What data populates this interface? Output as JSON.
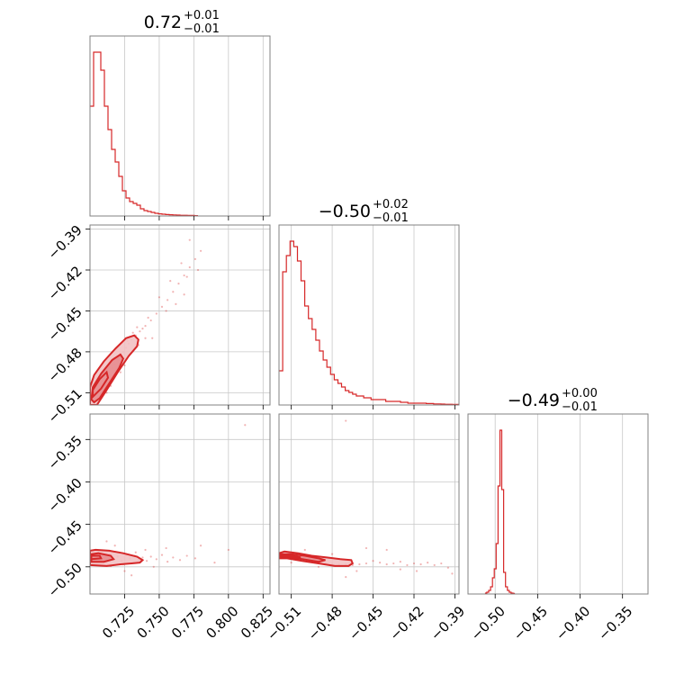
{
  "chart_data": {
    "type": "corner",
    "color": "#d62728",
    "parameters": [
      {
        "axis": "x",
        "range": [
          0.7,
          0.83
        ],
        "ticks": [
          0.725,
          0.75,
          0.775,
          0.8,
          0.825
        ],
        "tick_labels": [
          "0.725",
          "0.750",
          "0.775",
          "0.800",
          "0.825"
        ]
      },
      {
        "axis": "y",
        "range": [
          -0.519,
          -0.387
        ],
        "ticks": [
          -0.51,
          -0.48,
          -0.45,
          -0.42,
          -0.39
        ],
        "tick_labels": [
          "−0.51",
          "−0.48",
          "−0.45",
          "−0.42",
          "−0.39"
        ]
      },
      {
        "axis": "z",
        "range": [
          -0.532,
          -0.32
        ],
        "ticks": [
          -0.5,
          -0.45,
          -0.4,
          -0.35
        ],
        "tick_labels": [
          "−0.50",
          "−0.45",
          "−0.40",
          "−0.35"
        ]
      }
    ],
    "titles": [
      {
        "main": "0.72",
        "upper": "+0.01",
        "lower": "−0.01"
      },
      {
        "main": "−0.50",
        "upper": "+0.02",
        "lower": "−0.01"
      },
      {
        "main": "−0.49",
        "upper": "+0.00",
        "lower": "−0.01"
      }
    ],
    "histograms": [
      {
        "param": 0,
        "start": 0.7,
        "bin_width": 0.0026,
        "counts": [
          0.61,
          0.91,
          0.91,
          0.81,
          0.61,
          0.48,
          0.37,
          0.3,
          0.22,
          0.14,
          0.1,
          0.08,
          0.07,
          0.06,
          0.04,
          0.03,
          0.025,
          0.02,
          0.015,
          0.012,
          0.01,
          0.008,
          0.007,
          0.006,
          0.005,
          0.004,
          0.004,
          0.003,
          0.003,
          0.002
        ]
      },
      {
        "param": 1,
        "start": -0.519,
        "bin_width": 0.0027,
        "counts": [
          0.19,
          0.74,
          0.83,
          0.91,
          0.88,
          0.8,
          0.69,
          0.55,
          0.48,
          0.42,
          0.36,
          0.3,
          0.25,
          0.21,
          0.17,
          0.14,
          0.12,
          0.1,
          0.08,
          0.07,
          0.06,
          0.05,
          0.05,
          0.04,
          0.04,
          0.03,
          0.03,
          0.03,
          0.03,
          0.02,
          0.02,
          0.02,
          0.02,
          0.015,
          0.015,
          0.01,
          0.01,
          0.01,
          0.01,
          0.01,
          0.008,
          0.008,
          0.006,
          0.006,
          0.005,
          0.004,
          0.004,
          0.003,
          0.003
        ]
      },
      {
        "param": 2,
        "start": -0.512,
        "bin_width": 0.0022,
        "counts": [
          0.005,
          0.01,
          0.02,
          0.04,
          0.09,
          0.14,
          0.28,
          0.6,
          0.91,
          0.58,
          0.12,
          0.04,
          0.02,
          0.01,
          0.005,
          0.003
        ]
      }
    ],
    "scatter": [
      {
        "x_param": 0,
        "y_param": 1,
        "points": [
          [
            0.704,
            -0.512
          ],
          [
            0.706,
            -0.508
          ],
          [
            0.708,
            -0.505
          ],
          [
            0.71,
            -0.501
          ],
          [
            0.712,
            -0.498
          ],
          [
            0.714,
            -0.495
          ],
          [
            0.716,
            -0.492
          ],
          [
            0.718,
            -0.489
          ],
          [
            0.72,
            -0.486
          ],
          [
            0.722,
            -0.483
          ],
          [
            0.724,
            -0.48
          ],
          [
            0.726,
            -0.477
          ],
          [
            0.728,
            -0.474
          ],
          [
            0.73,
            -0.471
          ],
          [
            0.733,
            -0.468
          ],
          [
            0.736,
            -0.465
          ],
          [
            0.74,
            -0.461
          ],
          [
            0.744,
            -0.457
          ],
          [
            0.748,
            -0.452
          ],
          [
            0.752,
            -0.447
          ],
          [
            0.756,
            -0.442
          ],
          [
            0.76,
            -0.436
          ],
          [
            0.764,
            -0.43
          ],
          [
            0.768,
            -0.424
          ],
          [
            0.772,
            -0.418
          ],
          [
            0.776,
            -0.412
          ],
          [
            0.78,
            -0.406
          ],
          [
            0.742,
            -0.455
          ],
          [
            0.738,
            -0.463
          ],
          [
            0.727,
            -0.472
          ],
          [
            0.731,
            -0.466
          ],
          [
            0.734,
            -0.462
          ],
          [
            0.75,
            -0.44
          ],
          [
            0.758,
            -0.428
          ],
          [
            0.766,
            -0.415
          ],
          [
            0.772,
            -0.398
          ],
          [
            0.77,
            -0.425
          ],
          [
            0.778,
            -0.42
          ],
          [
            0.745,
            -0.47
          ],
          [
            0.715,
            -0.505
          ],
          [
            0.712,
            -0.51
          ],
          [
            0.722,
            -0.495
          ],
          [
            0.725,
            -0.49
          ],
          [
            0.735,
            -0.475
          ],
          [
            0.74,
            -0.47
          ],
          [
            0.755,
            -0.45
          ],
          [
            0.762,
            -0.445
          ],
          [
            0.768,
            -0.438
          ]
        ]
      },
      {
        "x_param": 0,
        "y_param": 2,
        "points": [
          [
            0.702,
            -0.492
          ],
          [
            0.705,
            -0.487
          ],
          [
            0.708,
            -0.494
          ],
          [
            0.711,
            -0.489
          ],
          [
            0.714,
            -0.485
          ],
          [
            0.717,
            -0.491
          ],
          [
            0.72,
            -0.488
          ],
          [
            0.723,
            -0.493
          ],
          [
            0.726,
            -0.486
          ],
          [
            0.729,
            -0.49
          ],
          [
            0.732,
            -0.487
          ],
          [
            0.735,
            -0.492
          ],
          [
            0.738,
            -0.489
          ],
          [
            0.741,
            -0.493
          ],
          [
            0.744,
            -0.488
          ],
          [
            0.748,
            -0.491
          ],
          [
            0.752,
            -0.486
          ],
          [
            0.756,
            -0.494
          ],
          [
            0.76,
            -0.489
          ],
          [
            0.765,
            -0.492
          ],
          [
            0.77,
            -0.487
          ],
          [
            0.776,
            -0.49
          ],
          [
            0.712,
            -0.47
          ],
          [
            0.718,
            -0.475
          ],
          [
            0.725,
            -0.505
          ],
          [
            0.73,
            -0.51
          ],
          [
            0.74,
            -0.48
          ],
          [
            0.746,
            -0.5
          ],
          [
            0.755,
            -0.478
          ],
          [
            0.78,
            -0.475
          ],
          [
            0.79,
            -0.495
          ],
          [
            0.8,
            -0.48
          ],
          [
            0.812,
            -0.333
          ],
          [
            0.724,
            -0.497
          ],
          [
            0.733,
            -0.483
          ],
          [
            0.715,
            -0.499
          ]
        ]
      },
      {
        "x_param": 1,
        "y_param": 2,
        "points": [
          [
            -0.515,
            -0.485
          ],
          [
            -0.51,
            -0.488
          ],
          [
            -0.505,
            -0.49
          ],
          [
            -0.5,
            -0.492
          ],
          [
            -0.495,
            -0.493
          ],
          [
            -0.49,
            -0.494
          ],
          [
            -0.485,
            -0.496
          ],
          [
            -0.48,
            -0.496
          ],
          [
            -0.475,
            -0.497
          ],
          [
            -0.47,
            -0.497
          ],
          [
            -0.465,
            -0.498
          ],
          [
            -0.46,
            -0.497
          ],
          [
            -0.455,
            -0.496
          ],
          [
            -0.45,
            -0.493
          ],
          [
            -0.445,
            -0.495
          ],
          [
            -0.44,
            -0.497
          ],
          [
            -0.435,
            -0.496
          ],
          [
            -0.43,
            -0.494
          ],
          [
            -0.425,
            -0.498
          ],
          [
            -0.42,
            -0.496
          ],
          [
            -0.415,
            -0.497
          ],
          [
            -0.41,
            -0.495
          ],
          [
            -0.405,
            -0.498
          ],
          [
            -0.4,
            -0.496
          ],
          [
            -0.395,
            -0.501
          ],
          [
            -0.392,
            -0.508
          ],
          [
            -0.47,
            -0.328
          ],
          [
            -0.44,
            -0.48
          ],
          [
            -0.455,
            -0.478
          ],
          [
            -0.48,
            -0.485
          ],
          [
            -0.49,
            -0.5
          ],
          [
            -0.5,
            -0.48
          ],
          [
            -0.51,
            -0.495
          ],
          [
            -0.462,
            -0.505
          ],
          [
            -0.43,
            -0.503
          ],
          [
            -0.418,
            -0.505
          ],
          [
            -0.47,
            -0.512
          ]
        ]
      }
    ],
    "contours": [
      {
        "x_param": 0,
        "y_param": 1,
        "outer": [
          [
            0.701,
            -0.519
          ],
          [
            0.705,
            -0.519
          ],
          [
            0.712,
            -0.508
          ],
          [
            0.72,
            -0.495
          ],
          [
            0.728,
            -0.483
          ],
          [
            0.734,
            -0.476
          ],
          [
            0.735,
            -0.471
          ],
          [
            0.732,
            -0.468
          ],
          [
            0.726,
            -0.47
          ],
          [
            0.718,
            -0.478
          ],
          [
            0.71,
            -0.487
          ],
          [
            0.703,
            -0.497
          ],
          [
            0.7,
            -0.506
          ],
          [
            0.7,
            -0.519
          ]
        ],
        "inner": [
          [
            0.703,
            -0.517
          ],
          [
            0.707,
            -0.514
          ],
          [
            0.714,
            -0.503
          ],
          [
            0.721,
            -0.492
          ],
          [
            0.724,
            -0.485
          ],
          [
            0.722,
            -0.482
          ],
          [
            0.716,
            -0.486
          ],
          [
            0.708,
            -0.496
          ],
          [
            0.702,
            -0.506
          ],
          [
            0.701,
            -0.515
          ]
        ],
        "core": [
          [
            0.702,
            -0.513
          ],
          [
            0.708,
            -0.507
          ],
          [
            0.713,
            -0.499
          ],
          [
            0.712,
            -0.495
          ],
          [
            0.707,
            -0.5
          ],
          [
            0.702,
            -0.508
          ]
        ]
      },
      {
        "x_param": 0,
        "y_param": 2,
        "outer": [
          [
            0.7,
            -0.498
          ],
          [
            0.712,
            -0.499
          ],
          [
            0.722,
            -0.497
          ],
          [
            0.73,
            -0.496
          ],
          [
            0.736,
            -0.495
          ],
          [
            0.738,
            -0.492
          ],
          [
            0.734,
            -0.488
          ],
          [
            0.724,
            -0.484
          ],
          [
            0.714,
            -0.481
          ],
          [
            0.704,
            -0.48
          ],
          [
            0.7,
            -0.481
          ]
        ],
        "inner": [
          [
            0.701,
            -0.494
          ],
          [
            0.71,
            -0.494
          ],
          [
            0.717,
            -0.491
          ],
          [
            0.715,
            -0.487
          ],
          [
            0.706,
            -0.484
          ],
          [
            0.701,
            -0.485
          ]
        ],
        "core": [
          [
            0.701,
            -0.491
          ],
          [
            0.708,
            -0.49
          ],
          [
            0.707,
            -0.487
          ],
          [
            0.701,
            -0.487
          ]
        ]
      },
      {
        "x_param": 1,
        "y_param": 2,
        "outer": [
          [
            -0.519,
            -0.484
          ],
          [
            -0.515,
            -0.482
          ],
          [
            -0.505,
            -0.484
          ],
          [
            -0.495,
            -0.487
          ],
          [
            -0.484,
            -0.489
          ],
          [
            -0.474,
            -0.491
          ],
          [
            -0.466,
            -0.492
          ],
          [
            -0.465,
            -0.496
          ],
          [
            -0.468,
            -0.499
          ],
          [
            -0.478,
            -0.499
          ],
          [
            -0.49,
            -0.496
          ],
          [
            -0.502,
            -0.493
          ],
          [
            -0.513,
            -0.49
          ],
          [
            -0.519,
            -0.49
          ]
        ],
        "inner": [
          [
            -0.518,
            -0.485
          ],
          [
            -0.51,
            -0.485
          ],
          [
            -0.5,
            -0.487
          ],
          [
            -0.49,
            -0.49
          ],
          [
            -0.485,
            -0.492
          ],
          [
            -0.49,
            -0.494
          ],
          [
            -0.502,
            -0.491
          ],
          [
            -0.512,
            -0.489
          ],
          [
            -0.518,
            -0.488
          ]
        ],
        "core": [
          [
            -0.517,
            -0.486
          ],
          [
            -0.509,
            -0.487
          ],
          [
            -0.503,
            -0.489
          ],
          [
            -0.509,
            -0.489
          ],
          [
            -0.517,
            -0.488
          ]
        ]
      }
    ],
    "grid": true
  }
}
